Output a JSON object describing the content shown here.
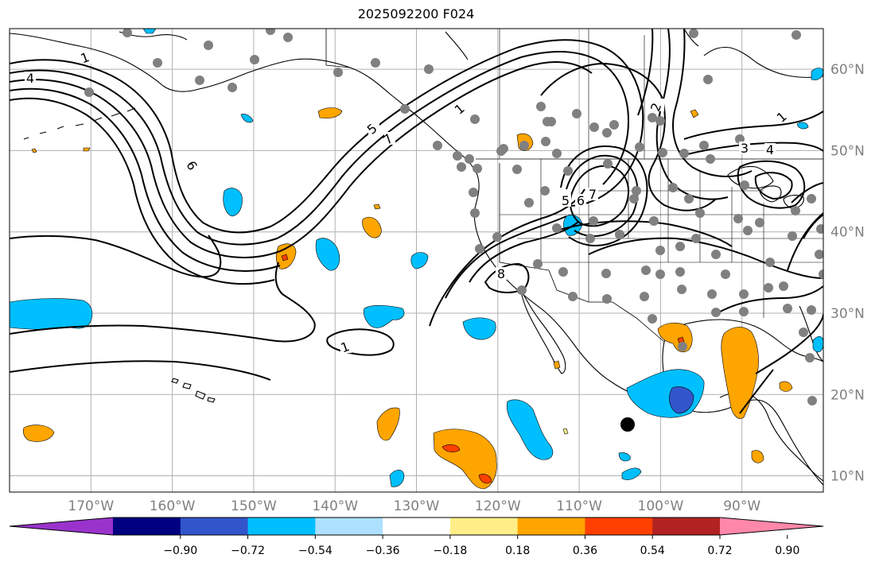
{
  "title": "2025092200 F024",
  "map": {
    "projection": "plate-carree",
    "lon_range": [
      -180,
      -80
    ],
    "lat_range": [
      8,
      65
    ],
    "gridlines": true,
    "lon_labels": [
      "170°W",
      "160°W",
      "150°W",
      "140°W",
      "130°W",
      "120°W",
      "110°W",
      "100°W",
      "90°W"
    ],
    "lat_labels": [
      "60°N",
      "50°N",
      "40°N",
      "30°N",
      "20°N",
      "10°N"
    ],
    "contour_labels": [
      "1",
      "4",
      "6",
      "5",
      "7",
      "1",
      "2",
      "1",
      "3",
      "4",
      "5",
      "6",
      "7",
      "8",
      "1"
    ],
    "marker": {
      "name": "black-dot",
      "color": "#000000"
    }
  },
  "colorbar": {
    "ticks": [
      "−0.90",
      "−0.72",
      "−0.54",
      "−0.36",
      "−0.18",
      "0.18",
      "0.36",
      "0.54",
      "0.72",
      "0.90"
    ],
    "colors": [
      "#9933cc",
      "#000080",
      "#3355cc",
      "#00bfff",
      "#aee1ff",
      "#ffffff",
      "#ffee88",
      "#ffa500",
      "#ff4000",
      "#b22222",
      "#ff88aa"
    ]
  },
  "colors": {
    "land_outline": "#000000",
    "contours": "#000000",
    "station_dots": "#808080",
    "grid": "#b0b0b0"
  }
}
